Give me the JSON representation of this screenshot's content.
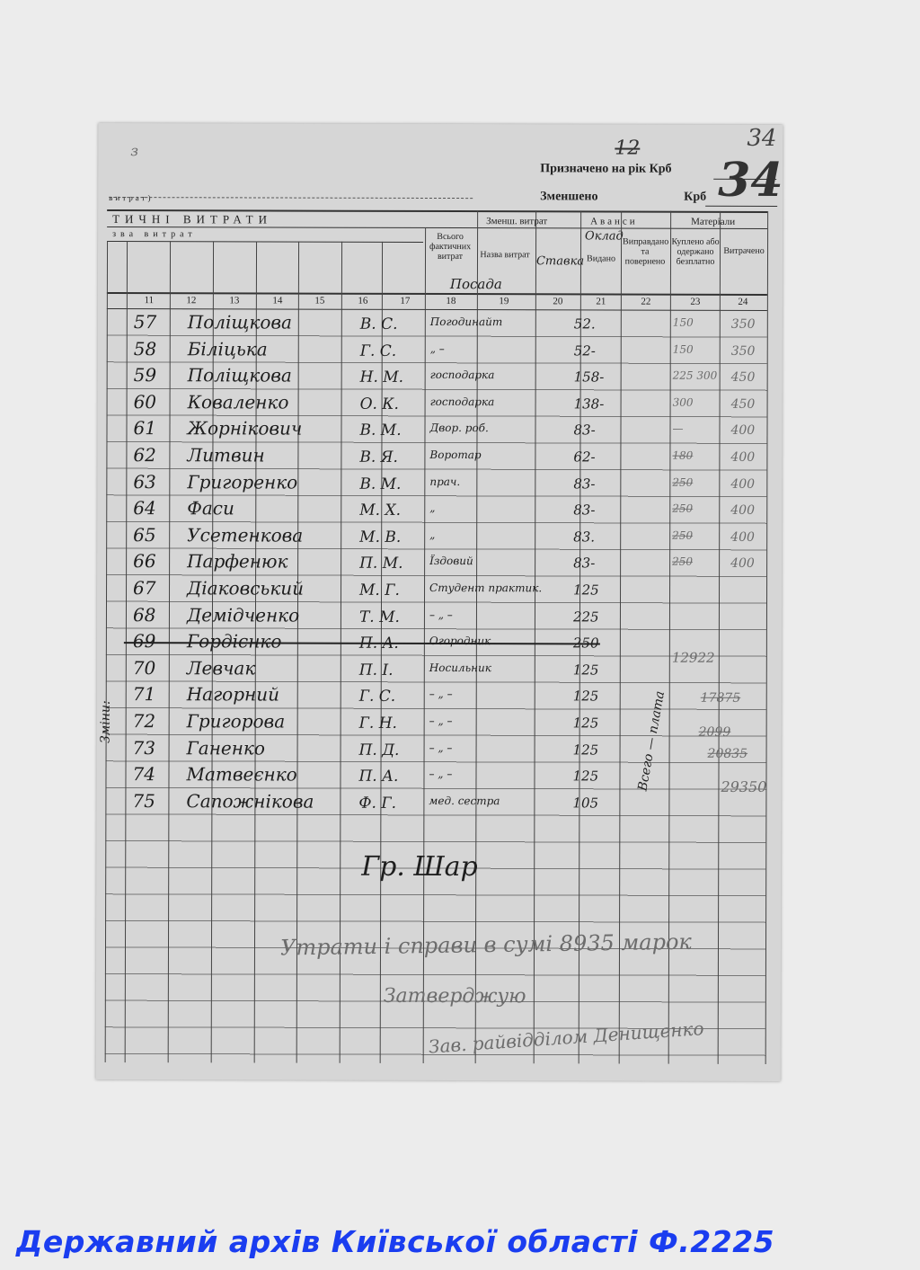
{
  "header": {
    "assigned_label": "Призначено на рік Крб",
    "reduced_label": "Зменшено",
    "reduced_currency": "Крб",
    "page_num_struck": "12",
    "page_num_small": "34",
    "page_num_big": "34",
    "top_left_mark": "з",
    "left_caption": "витрат)",
    "section_title": "ТИЧНІ ВИТРАТИ",
    "subsection_title": "зва витрат",
    "col_total": "Всього фактичних витрат",
    "group_reduce": "Зменш. витрат",
    "col_expense_name": "Назва витрат",
    "group_advances": "Аванси",
    "col_issued": "Видано",
    "col_justified": "Виправдано та повернено",
    "group_materials": "Матеріали",
    "col_bought": "Куплено або одержано безплатно",
    "col_spent": "Витрачено",
    "hand_position": "Посада",
    "hand_rate": "Ставка",
    "hand_salary": "Оклад",
    "column_numbers": [
      "11",
      "12",
      "13",
      "14",
      "15",
      "16",
      "17",
      "18",
      "19",
      "20",
      "21",
      "22",
      "23",
      "24"
    ]
  },
  "rows": [
    {
      "num": "57",
      "surname": "Поліщкова",
      "initials": "В. С.",
      "position": "Погодинайт",
      "amount": "52.",
      "col23": "150",
      "col24": "350"
    },
    {
      "num": "58",
      "surname": "Біліцька",
      "initials": "Г. С.",
      "position": "„ –",
      "amount": "52-",
      "col23": "150",
      "col24": "350"
    },
    {
      "num": "59",
      "surname": "Поліщкова",
      "initials": "Н. М.",
      "position": "господарка",
      "amount": "158-",
      "col23": "225 300",
      "col24": "450"
    },
    {
      "num": "60",
      "surname": "Коваленко",
      "initials": "О. К.",
      "position": "господарка",
      "amount": "138-",
      "col23": "300",
      "col24": "450"
    },
    {
      "num": "61",
      "surname": "Жорнікович",
      "initials": "В. М.",
      "position": "Двор. роб.",
      "amount": "83-",
      "col23": "—",
      "col24": "400"
    },
    {
      "num": "62",
      "surname": "Литвин",
      "initials": "В. Я.",
      "position": "Воротар",
      "amount": "62-",
      "col23": "180",
      "col24": "400"
    },
    {
      "num": "63",
      "surname": "Григоренко",
      "initials": "В. М.",
      "position": "прач.",
      "amount": "83-",
      "col23": "250",
      "col24": "400"
    },
    {
      "num": "64",
      "surname": "Фаси",
      "initials": "М. Х.",
      "position": "„",
      "amount": "83-",
      "col23": "250",
      "col24": "400"
    },
    {
      "num": "65",
      "surname": "Усетенкова",
      "initials": "М. В.",
      "position": "„",
      "amount": "83.",
      "col23": "250",
      "col24": "400"
    },
    {
      "num": "66",
      "surname": "Парфенюк",
      "initials": "П. М.",
      "position": "Їздовий",
      "amount": "83-",
      "col23": "250",
      "col24": "400"
    },
    {
      "num": "67",
      "surname": "Діаковський",
      "initials": "М. Г.",
      "position": "Студент практик.",
      "amount": "125",
      "col23": "",
      "col24": ""
    },
    {
      "num": "68",
      "surname": "Демідченко",
      "initials": "Т. М.",
      "position": "– „ –",
      "amount": "225",
      "col23": "",
      "col24": ""
    },
    {
      "num": "69",
      "surname": "Гордієнко",
      "initials": "П. А.",
      "position": "Огородник",
      "amount": "250",
      "col23": "",
      "col24": "",
      "struck": true
    },
    {
      "num": "70",
      "surname": "Левчак",
      "initials": "П. І.",
      "position": "Носильник",
      "amount": "125",
      "col23": "",
      "col24": ""
    },
    {
      "num": "71",
      "surname": "Нагорний",
      "initials": "Г. С.",
      "position": "– „ –",
      "amount": "125",
      "col23": "",
      "col24": ""
    },
    {
      "num": "72",
      "surname": "Григорова",
      "initials": "Г. Н.",
      "position": "– „ –",
      "amount": "125",
      "col23": "",
      "col24": ""
    },
    {
      "num": "73",
      "surname": "Ганенко",
      "initials": "П. Д.",
      "position": "– „ –",
      "amount": "125",
      "col23": "",
      "col24": ""
    },
    {
      "num": "74",
      "surname": "Матвеєнко",
      "initials": "П. А.",
      "position": "– „ –",
      "amount": "125",
      "col23": "",
      "col24": ""
    },
    {
      "num": "75",
      "surname": "Сапожнікова",
      "initials": "Ф. Г.",
      "position": "мед. сестра",
      "amount": "105",
      "col23": "",
      "col24": ""
    }
  ],
  "notes": {
    "vertical_total": "Всего — плата",
    "left_margin": "Зміни:",
    "sum1": "12922",
    "sum2": "17875",
    "sum3": "2099",
    "sum4": "20835",
    "sum5": "29350",
    "signature": "Гр. Шар",
    "bottom_line1": "Утрати і справи в сумі 8935 марок",
    "bottom_line2": "Затверджую",
    "bottom_line3": "Зав. райвідділом Денищенко"
  },
  "footer": {
    "archive": "Державний архів Київської області Ф.2225"
  },
  "colors": {
    "footer": "#1a3df0",
    "paper": "#d6d6d6"
  }
}
